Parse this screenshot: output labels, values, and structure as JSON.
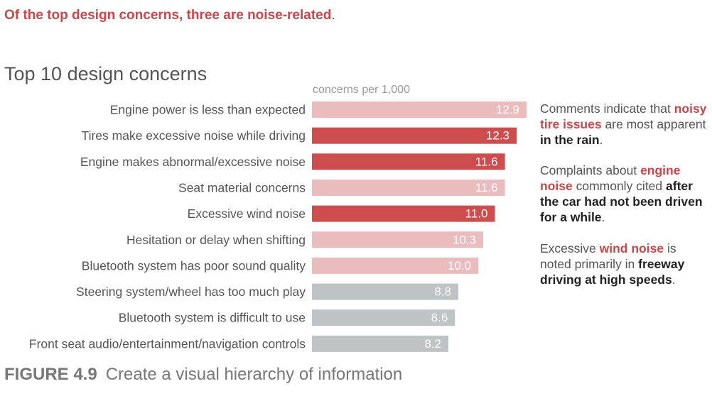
{
  "headline": {
    "text": "Of the top design concerns, three are noise-related",
    "period": "."
  },
  "chart_data": {
    "type": "bar",
    "orientation": "horizontal",
    "title": "Top 10 design concerns",
    "xlabel": "concerns per 1,000",
    "ylabel": "",
    "xlim": [
      0,
      12.9
    ],
    "grid": false,
    "categories": [
      "Engine power is less than expected",
      "Tires make excessive noise while driving",
      "Engine makes abnormal/excessive noise",
      "Seat material concerns",
      "Excessive wind noise",
      "Hesitation or delay when shifting",
      "Bluetooth system has poor sound quality",
      "Steering system/wheel has too much play",
      "Bluetooth system is difficult to use",
      "Front seat audio/entertainment/navigation controls"
    ],
    "values": [
      12.9,
      12.3,
      11.6,
      11.6,
      11.0,
      10.3,
      10.0,
      8.8,
      8.6,
      8.2
    ],
    "labels": [
      "12.9",
      "12.3",
      "11.6",
      "11.6",
      "11.0",
      "10.3",
      "10.0",
      "8.8",
      "8.6",
      "8.2"
    ],
    "groups": [
      "light",
      "noise",
      "noise",
      "light",
      "noise",
      "light",
      "light",
      "gray",
      "gray",
      "gray"
    ]
  },
  "colors": {
    "noise": "#cd4c4d",
    "light": "#ebbcbd",
    "gray": "#bec3c3",
    "accent_text": "#c9474a",
    "label_text": "#555555",
    "value_text": "#ffffff"
  },
  "annotations": {
    "tires": {
      "t1": "Comments indicate that ",
      "t2": "noisy tire issues",
      "t3": " are most apparent ",
      "t4": "in the rain",
      "t5": "."
    },
    "engine": {
      "t1": "Complaints about ",
      "t2": "engine noise",
      "t3": " commonly cited ",
      "t4": "after the car had not been driven for a while",
      "t5": "."
    },
    "wind": {
      "t1": "Excessive ",
      "t2": "wind noise",
      "t3": " is noted primarily in ",
      "t4": "freeway driving at high speeds",
      "t5": "."
    }
  },
  "figure_caption": {
    "label": "FIGURE 4.9",
    "text": "Create a visual hierarchy of information"
  }
}
